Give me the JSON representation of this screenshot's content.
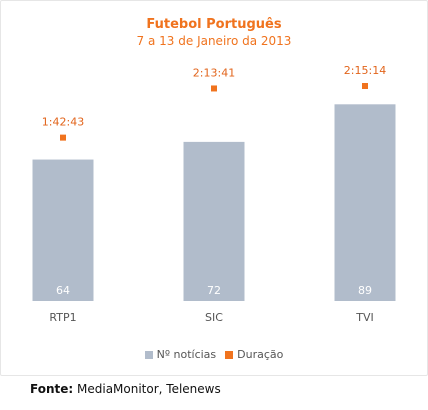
{
  "chart_data": {
    "type": "bar",
    "title": "Futebol Português",
    "subtitle": "7 a 13 de Janeiro da 2013",
    "categories": [
      "RTP1",
      "SIC",
      "TVI"
    ],
    "series": [
      {
        "name": "Nº notícias",
        "type": "bar",
        "values": [
          64,
          72,
          89
        ],
        "color": "#b1bccb"
      },
      {
        "name": "Duração",
        "type": "scatter",
        "values": [
          6163,
          8021,
          8114
        ],
        "labels": [
          "1:42:43",
          "2:13:41",
          "2:15:14"
        ],
        "color": "#f0731e"
      }
    ],
    "legend_position": "bottom",
    "grid": false
  },
  "source": {
    "label": "Fonte:",
    "text": "MediaMonitor, Telenews"
  }
}
